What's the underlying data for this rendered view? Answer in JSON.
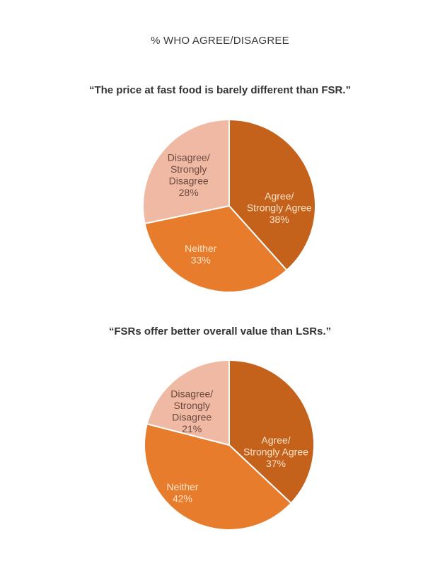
{
  "page": {
    "main_title": "% WHO AGREE/DISAGREE"
  },
  "colors": {
    "agree": "#c4621c",
    "neither": "#e67c2c",
    "disagree": "#f0b9a3",
    "label_light": "#fbe3c9",
    "label_dark": "#6b4a40",
    "separator": "#ffffff"
  },
  "charts": [
    {
      "title": "“The price at fast food is barely different than FSR.”",
      "slices": [
        {
          "key": "agree",
          "lines": [
            "Agree/",
            "Strongly Agree",
            "38%"
          ]
        },
        {
          "key": "neither",
          "lines": [
            "Neither",
            "33%"
          ]
        },
        {
          "key": "disagree",
          "lines": [
            "Disagree/",
            "Strongly",
            "Disagree",
            "28%"
          ]
        }
      ]
    },
    {
      "title": "“FSRs offer better overall value than LSRs.”",
      "slices": [
        {
          "key": "agree",
          "lines": [
            "Agree/",
            "Strongly Agree",
            "37%"
          ]
        },
        {
          "key": "neither",
          "lines": [
            "Neither",
            "42%"
          ]
        },
        {
          "key": "disagree",
          "lines": [
            "Disagree/",
            "Strongly",
            "Disagree",
            "21%"
          ]
        }
      ]
    }
  ],
  "chart_data": [
    {
      "type": "pie",
      "title": "“The price at fast food is barely different than FSR.”",
      "supertitle": "% WHO AGREE/DISAGREE",
      "categories": [
        "Agree/Strongly Agree",
        "Neither",
        "Disagree/Strongly Disagree"
      ],
      "values": [
        38,
        33,
        28
      ],
      "unit": "%",
      "start_angle": "12 o'clock, clockwise",
      "legend": "none (data labels inside slices)"
    },
    {
      "type": "pie",
      "title": "“FSRs offer better overall value than LSRs.”",
      "supertitle": "% WHO AGREE/DISAGREE",
      "categories": [
        "Agree/Strongly Agree",
        "Neither",
        "Disagree/Strongly Disagree"
      ],
      "values": [
        37,
        42,
        21
      ],
      "unit": "%",
      "start_angle": "12 o'clock, clockwise",
      "legend": "none (data labels inside slices)"
    }
  ]
}
